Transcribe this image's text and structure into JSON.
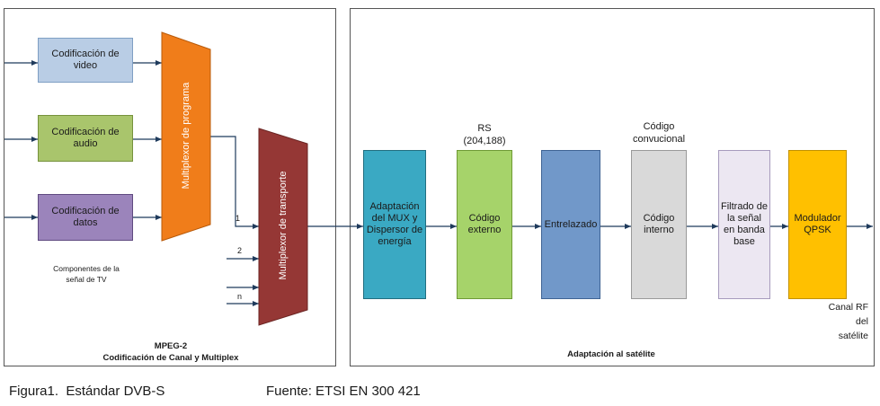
{
  "left_panel": {
    "encoders": [
      "Codificación de video",
      "Codificación de audio",
      "Codificación de datos"
    ],
    "program_mux": "Multiplexor de programa",
    "transport_mux": "Multiplexor de transporte",
    "transport_inputs": [
      "1",
      "2",
      "n"
    ],
    "note": "Componentes de la señal de TV",
    "title": "MPEG-2",
    "subtitle": "Codificación de Canal y Multiplex"
  },
  "right_panel": {
    "blocks": [
      {
        "label": "Adaptación del MUX y Dispersor de energía"
      },
      {
        "label": "Código externo",
        "annotation": "RS (204,188)"
      },
      {
        "label": "Entrelazado"
      },
      {
        "label": "Código interno",
        "annotation": "Código convucional"
      },
      {
        "label": "Filtrado de la señal en banda base"
      },
      {
        "label": "Modulador QPSK"
      }
    ],
    "output": "Canal RF del satélite",
    "title": "Adaptación al satélite"
  },
  "caption": {
    "figure": "Figura1.  Estándar DVB-S",
    "source": "Fuente: ETSI EN 300 421"
  }
}
